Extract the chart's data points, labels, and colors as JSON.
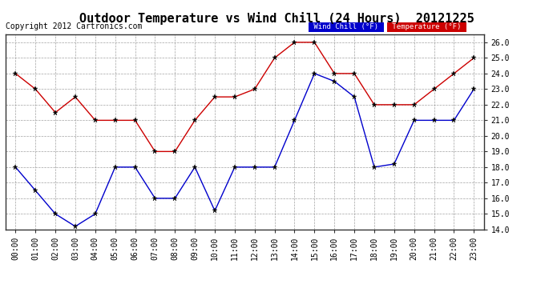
{
  "title": "Outdoor Temperature vs Wind Chill (24 Hours)  20121225",
  "copyright": "Copyright 2012 Cartronics.com",
  "hours": [
    "00:00",
    "01:00",
    "02:00",
    "03:00",
    "04:00",
    "05:00",
    "06:00",
    "07:00",
    "08:00",
    "09:00",
    "10:00",
    "11:00",
    "12:00",
    "13:00",
    "14:00",
    "15:00",
    "16:00",
    "17:00",
    "18:00",
    "19:00",
    "20:00",
    "21:00",
    "22:00",
    "23:00"
  ],
  "wind_chill": [
    18.0,
    16.5,
    15.0,
    14.2,
    15.0,
    18.0,
    18.0,
    16.0,
    16.0,
    18.0,
    15.2,
    18.0,
    18.0,
    18.0,
    21.0,
    24.0,
    23.5,
    22.5,
    18.0,
    18.2,
    21.0,
    21.0,
    21.0,
    23.0
  ],
  "temperature": [
    24.0,
    23.0,
    21.5,
    22.5,
    21.0,
    21.0,
    21.0,
    19.0,
    19.0,
    21.0,
    22.5,
    22.5,
    23.0,
    25.0,
    26.0,
    26.0,
    24.0,
    24.0,
    22.0,
    22.0,
    22.0,
    23.0,
    24.0,
    25.0
  ],
  "wind_chill_color": "#0000cc",
  "temperature_color": "#cc0000",
  "bg_color": "#ffffff",
  "plot_bg_color": "#ffffff",
  "grid_color": "#999999",
  "ylim_min": 14.0,
  "ylim_max": 26.5,
  "yticks": [
    14.0,
    15.0,
    16.0,
    17.0,
    18.0,
    19.0,
    20.0,
    21.0,
    22.0,
    23.0,
    24.0,
    25.0,
    26.0
  ],
  "legend_wind_label": "Wind Chill (°F)",
  "legend_temp_label": "Temperature (°F)",
  "legend_wind_bg": "#0000cc",
  "legend_temp_bg": "#cc0000",
  "title_fontsize": 11,
  "tick_fontsize": 7,
  "copyright_fontsize": 7
}
